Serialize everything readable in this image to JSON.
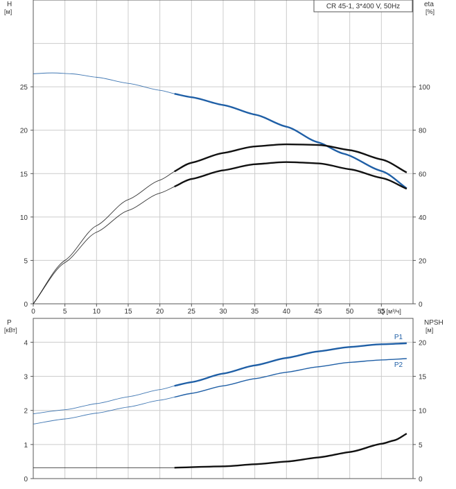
{
  "chart_data": [
    {
      "type": "line",
      "title": "CR 45-1, 3*400 V, 50Hz",
      "xlabel": "Q [м³/ч]",
      "xlim": [
        0,
        60
      ],
      "x_ticks": [
        0,
        5,
        10,
        15,
        20,
        25,
        30,
        35,
        40,
        45,
        50,
        55
      ],
      "y_left": {
        "label_line1": "H",
        "label_line2": "[м]",
        "lim": [
          0,
          35
        ],
        "ticks": [
          0,
          5,
          10,
          15,
          20,
          25
        ]
      },
      "y_right": {
        "label_line1": "eta",
        "label_line2": "[%]",
        "lim": [
          0,
          140
        ],
        "ticks": [
          0,
          20,
          40,
          60,
          80,
          100
        ]
      },
      "grid": true,
      "colors": {
        "head": "#1f5fa6",
        "efficiency": "#111111",
        "grid": "#cccccc",
        "axis": "#555555"
      },
      "operating_range": [
        22.3,
        59
      ],
      "series": [
        {
          "axis": "left",
          "color": "#1f5fa6",
          "x": [
            0,
            3,
            6,
            10,
            15,
            20,
            22.3,
            25,
            30,
            35,
            40,
            45,
            49,
            55,
            59
          ],
          "y": [
            26.5,
            26.6,
            26.5,
            26.1,
            25.4,
            24.6,
            24.2,
            23.8,
            22.9,
            21.8,
            20.4,
            18.6,
            17.3,
            15.3,
            13.3
          ]
        },
        {
          "axis": "right",
          "color": "#111111",
          "x": [
            0,
            5,
            10,
            15,
            20,
            22.3,
            25,
            30,
            35,
            40,
            45,
            50,
            55,
            59
          ],
          "y": [
            0,
            20,
            36,
            48,
            57,
            61,
            65,
            69.5,
            72.5,
            73.5,
            73.2,
            70.8,
            66.5,
            60.5
          ]
        },
        {
          "axis": "right",
          "color": "#111111",
          "x": [
            0,
            5,
            10,
            15,
            20,
            22.3,
            25,
            30,
            35,
            40,
            45,
            50,
            55,
            59
          ],
          "y": [
            0,
            19,
            33,
            43,
            51,
            54,
            57.5,
            61.5,
            64.3,
            65.3,
            64.7,
            62,
            58,
            53
          ]
        }
      ]
    },
    {
      "type": "line",
      "xlim": [
        0,
        60
      ],
      "y_left": {
        "label_line1": "P",
        "label_line2": "[кВт]",
        "lim": [
          0,
          4.7
        ],
        "ticks": [
          0,
          1,
          2,
          3,
          4
        ]
      },
      "y_right": {
        "label_line1": "NPSH",
        "label_line2": "[м]",
        "lim": [
          0,
          23.5
        ],
        "ticks": [
          0,
          5,
          10,
          15,
          20
        ]
      },
      "grid": true,
      "operating_range": [
        22.3,
        59
      ],
      "series": [
        {
          "name": "P1",
          "axis": "left",
          "color": "#1f5fa6",
          "x": [
            0,
            5,
            10,
            15,
            20,
            22.3,
            25,
            30,
            35,
            40,
            45,
            50,
            55,
            59
          ],
          "y": [
            1.9,
            2.02,
            2.2,
            2.4,
            2.61,
            2.72,
            2.83,
            3.08,
            3.32,
            3.54,
            3.73,
            3.86,
            3.94,
            3.97
          ]
        },
        {
          "name": "P2",
          "axis": "left",
          "color": "#1f5fa6",
          "x": [
            0,
            5,
            10,
            15,
            20,
            22.3,
            25,
            30,
            35,
            40,
            45,
            50,
            55,
            59
          ],
          "y": [
            1.6,
            1.75,
            1.92,
            2.1,
            2.3,
            2.39,
            2.5,
            2.72,
            2.93,
            3.12,
            3.28,
            3.41,
            3.48,
            3.52
          ]
        },
        {
          "axis": "right",
          "color": "#111111",
          "x": [
            0,
            10,
            20,
            22.3,
            30,
            35,
            40,
            45,
            50,
            55,
            57,
            59
          ],
          "y": [
            1.6,
            1.6,
            1.6,
            1.6,
            1.8,
            2.1,
            2.5,
            3.1,
            3.9,
            5.1,
            5.6,
            6.6
          ]
        }
      ]
    }
  ]
}
